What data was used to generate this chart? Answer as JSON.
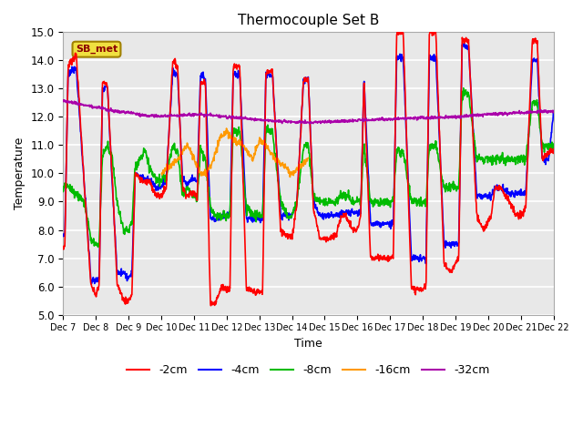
{
  "title": "Thermocouple Set B",
  "xlabel": "Time",
  "ylabel": "Temperature",
  "ylim": [
    5.0,
    15.0
  ],
  "yticks": [
    5.0,
    6.0,
    7.0,
    8.0,
    9.0,
    10.0,
    11.0,
    12.0,
    13.0,
    14.0,
    15.0
  ],
  "xlim": [
    0,
    15
  ],
  "colors": {
    "-2cm": "#ff0000",
    "-4cm": "#0000ff",
    "-8cm": "#00bb00",
    "-16cm": "#ff9900",
    "-32cm": "#aa00aa"
  },
  "annotation_text": "SB_met",
  "background_color": "#e8e8e8",
  "grid_color": "#ffffff",
  "xtick_labels": [
    "Dec 7",
    "Dec 8",
    "Dec 9",
    "Dec 10",
    "Dec 11",
    "Dec 12",
    "Dec 13",
    "Dec 14",
    "Dec 15",
    "Dec 16",
    "Dec 17",
    "Dec 18",
    "Dec 19",
    "Dec 20",
    "Dec 21",
    "Dec 22"
  ]
}
